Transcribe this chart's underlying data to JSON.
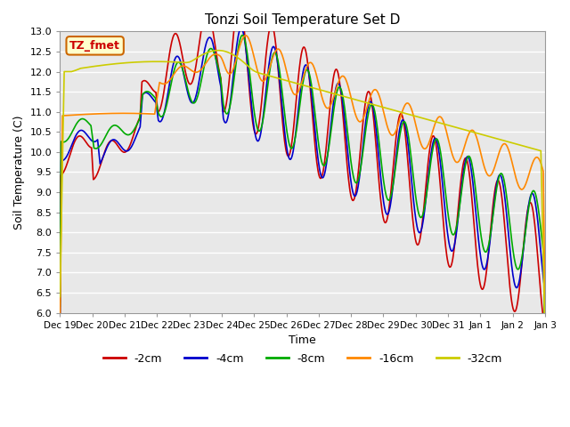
{
  "title": "Tonzi Soil Temperature Set D",
  "xlabel": "Time",
  "ylabel": "Soil Temperature (C)",
  "ylim": [
    6.0,
    13.0
  ],
  "yticks": [
    6.0,
    6.5,
    7.0,
    7.5,
    8.0,
    8.5,
    9.0,
    9.5,
    10.0,
    10.5,
    11.0,
    11.5,
    12.0,
    12.5,
    13.0
  ],
  "legend_label": "TZ_fmet",
  "series_labels": [
    "-2cm",
    "-4cm",
    "-8cm",
    "-16cm",
    "-32cm"
  ],
  "series_colors": [
    "#cc0000",
    "#0000cc",
    "#00aa00",
    "#ff8800",
    "#cccc00"
  ],
  "xtick_labels": [
    "Dec 19",
    "Dec 20",
    "Dec 21",
    "Dec 22",
    "Dec 23",
    "Dec 24",
    "Dec 25",
    "Dec 26",
    "Dec 27",
    "Dec 28",
    "Dec 29",
    "Dec 30",
    "Dec 31",
    "Jan 1",
    "Jan 2",
    "Jan 3"
  ],
  "background_color": "#e8e8e8",
  "plot_bg_color": "#e8e8e8",
  "grid_color": "#ffffff",
  "n_points": 336
}
